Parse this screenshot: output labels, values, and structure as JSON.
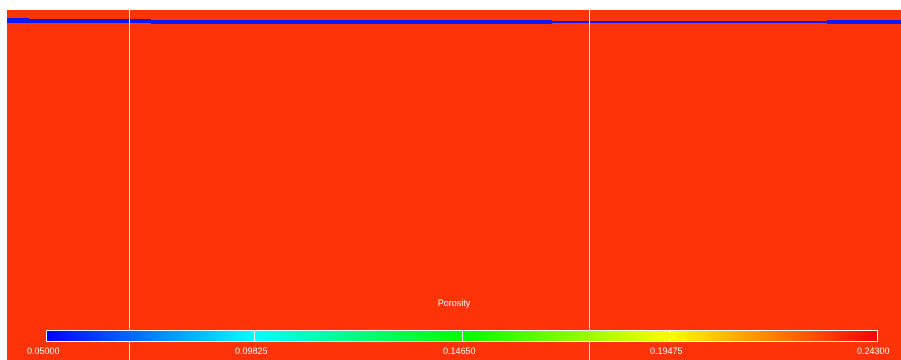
{
  "scalar_bar": {
    "title": "Porosity",
    "labels": [
      "0.05000",
      "0.09825",
      "0.14650",
      "0.19475",
      "0.24300"
    ],
    "range": [
      0.05,
      0.243
    ],
    "colormap": [
      "#0000ff",
      "#00ffff",
      "#00ff00",
      "#ffff00",
      "#ff0000"
    ]
  },
  "view": {
    "background_color": "#ff3308",
    "layer_color": "#0a1cf5",
    "grid_line_color": "#f2f2f2"
  }
}
